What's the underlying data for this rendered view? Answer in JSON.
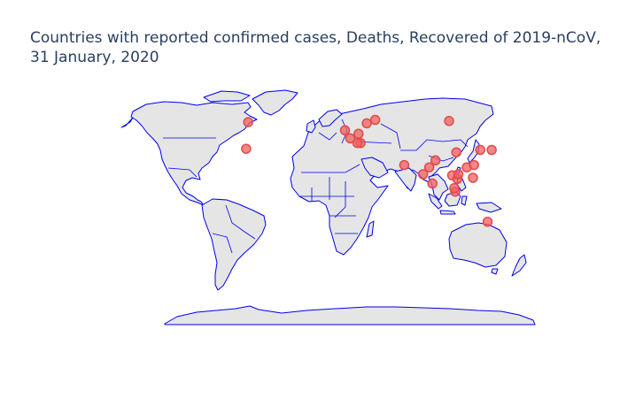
{
  "title": {
    "line1": "Countries with reported confirmed cases, Deaths, Recovered of 2019-nCoV,",
    "line2": "31 January, 2020"
  },
  "colors": {
    "land": "#e5e5e5",
    "coastline": "#0000ee",
    "marker": "#f06060",
    "title": "#2a3f5f"
  },
  "map_data": {
    "type": "scattergeo",
    "projection": "equirectangular",
    "marker_symbol": "circle",
    "points": [
      {
        "lon": -96,
        "lat": 61
      },
      {
        "lon": -98,
        "lat": 38
      },
      {
        "lon": -3,
        "lat": 54
      },
      {
        "lon": 2,
        "lat": 47
      },
      {
        "lon": 10,
        "lat": 51
      },
      {
        "lon": 12,
        "lat": 43
      },
      {
        "lon": 9,
        "lat": 43
      },
      {
        "lon": 18,
        "lat": 60
      },
      {
        "lon": 26,
        "lat": 63
      },
      {
        "lon": 97,
        "lat": 62
      },
      {
        "lon": 54,
        "lat": 24
      },
      {
        "lon": 78,
        "lat": 22
      },
      {
        "lon": 84,
        "lat": 28
      },
      {
        "lon": 104,
        "lat": 35
      },
      {
        "lon": 81,
        "lat": 8
      },
      {
        "lon": 72,
        "lat": 16
      },
      {
        "lon": 100,
        "lat": 15
      },
      {
        "lon": 105,
        "lat": 12
      },
      {
        "lon": 106,
        "lat": 16
      },
      {
        "lon": 114,
        "lat": 22
      },
      {
        "lon": 121,
        "lat": 24
      },
      {
        "lon": 120,
        "lat": 13
      },
      {
        "lon": 127,
        "lat": 37
      },
      {
        "lon": 138,
        "lat": 37
      },
      {
        "lon": 103,
        "lat": 1
      },
      {
        "lon": 102,
        "lat": 4
      },
      {
        "lon": 134,
        "lat": -25
      }
    ]
  }
}
